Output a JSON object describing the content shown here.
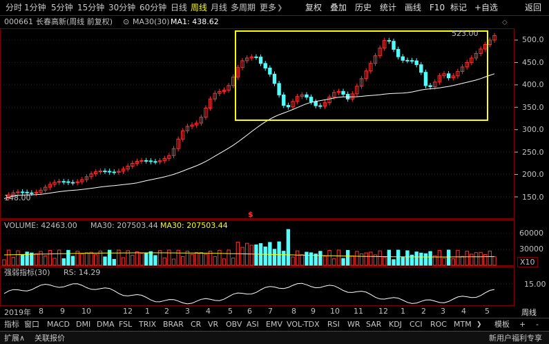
{
  "toolbar": {
    "periods": [
      "分时",
      "1分钟",
      "5分钟",
      "15分钟",
      "30分钟",
      "60分钟",
      "日线",
      "周线",
      "月线",
      "多周期"
    ],
    "active_period": "周线",
    "more": "更多",
    "more_arrow": "❯",
    "buttons": [
      "复权",
      "叠加",
      "历史",
      "统计",
      "画线",
      "F10",
      "标记",
      "+自选",
      "返回"
    ]
  },
  "info": {
    "code": "000661",
    "name": "长春高新(周线 前复权)",
    "ma_label": "MA30(30)",
    "ma1": "MA1: 438.62",
    "marker1": "◆",
    "marker2": "◇"
  },
  "price_axis": [
    "500.0",
    "450.0",
    "400.0",
    "350.0",
    "300.0",
    "250.0",
    "200.0",
    "150.0"
  ],
  "annotations": {
    "high": "523.00",
    "low": "148.00",
    "dollar": "$"
  },
  "volume": {
    "label": "VOLUME: 42463.00",
    "ma1": "MA30: 207503.44",
    "ma2": "MA30: 207503.44",
    "axis": [
      "60000",
      "30000"
    ],
    "unit": "X10"
  },
  "rs": {
    "label": "强弱指标(30)",
    "value": "RS: 14.29",
    "axis": "15.00"
  },
  "months": {
    "year": "2019年",
    "list": [
      "8",
      "9",
      "10",
      "12",
      "1",
      "2",
      "3",
      "4",
      "5",
      "6",
      "7",
      "8",
      "9",
      "10",
      "11",
      "12",
      "1",
      "2",
      "3",
      "4",
      "5"
    ],
    "panel_label": "周线"
  },
  "indicators": [
    "指标",
    "窗口",
    "MACD",
    "DMI",
    "DMA",
    "FSL",
    "TRIX",
    "BRAR",
    "CR",
    "VR",
    "OBV",
    "ASI",
    "EMV",
    "VOL-TDX",
    "RSI",
    "WR",
    "SAR",
    "KDJ",
    "CCI",
    "ROC",
    "MTM",
    "❯",
    "模板",
    "+",
    "-"
  ],
  "status": {
    "left": "扩展∧",
    "link": "关联报价",
    "right": "新用户福利专享"
  },
  "colors": {
    "up": "#ff3232",
    "down": "#54fcfc",
    "ma": "#ffffff",
    "highlight_box": "#ffff00",
    "grid": "#800000"
  }
}
